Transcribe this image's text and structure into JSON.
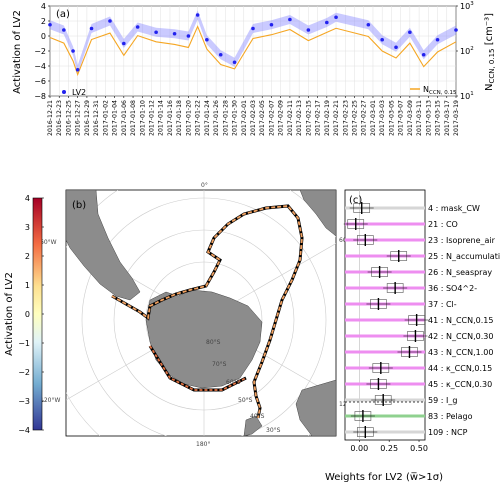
{
  "panel_a": {
    "tag": "(a)",
    "ylabel": "Activation of LV2",
    "ylabel_right_main": "N",
    "ylabel_right_sub": "CCN, 0.15",
    "ylabel_right_unit": " [cm⁻³]",
    "legend_lv2": "LV2",
    "legend_ncnn_main": "N",
    "legend_ncnn_sub": "CCN, 0.15",
    "yticks_left": [
      "4",
      "2",
      "0",
      "−2",
      "−4",
      "−6",
      "−8"
    ],
    "yticks_right_base": [
      "10",
      "10",
      "10"
    ],
    "yticks_right_exp": [
      "3",
      "2",
      "1"
    ],
    "dates": [
      "2016-12-21",
      "2016-12-23",
      "2016-12-25",
      "2016-12-27",
      "2016-12-29",
      "2016-12-31",
      "2017-01-02",
      "2017-01-04",
      "2017-01-06",
      "2017-01-08",
      "2017-01-10",
      "2017-01-12",
      "2017-01-14",
      "2017-01-16",
      "2017-01-18",
      "2017-01-20",
      "2017-01-22",
      "2017-01-24",
      "2017-01-26",
      "2017-01-28",
      "2017-01-30",
      "2017-02-01",
      "2017-02-03",
      "2017-02-05",
      "2017-02-07",
      "2017-02-09",
      "2017-02-11",
      "2017-02-13",
      "2017-02-15",
      "2017-02-17",
      "2017-02-19",
      "2017-02-21",
      "2017-02-23",
      "2017-02-25",
      "2017-02-27",
      "2017-03-01",
      "2017-03-03",
      "2017-03-05",
      "2017-03-07",
      "2017-03-09",
      "2017-03-11",
      "2017-03-13",
      "2017-03-15",
      "2017-03-17",
      "2017-03-19"
    ],
    "colors": {
      "lv2": "#2222ee",
      "band": "#8a8aff",
      "ncnn": "#f5a623"
    }
  },
  "panel_b": {
    "tag": "(b)",
    "colorbar_label": "Activation of LV2",
    "colorbar_ticks": [
      "4",
      "3",
      "2",
      "1",
      "0",
      "−1",
      "−2",
      "−3",
      "−4"
    ],
    "lon_labels": [
      "0°",
      "60°E",
      "120°E",
      "180°",
      "120°W",
      "60°W"
    ],
    "lat_labels": [
      "80°S",
      "70°S",
      "60°S",
      "50°S",
      "40°S",
      "30°S"
    ]
  },
  "panel_c": {
    "tag": "(c)",
    "xlabel": "Weights for LV2 (w̅>1σ)",
    "xticks": [
      "0.00",
      "0.25",
      "0.50"
    ],
    "colors": {
      "highlight": "#ee8ef0",
      "green": "#8fd18f",
      "gray": "#d6d6d6"
    }
  },
  "chart_data": [
    {
      "type": "line",
      "title": "(a)",
      "x_range": [
        "2016-12-21",
        "2017-03-19"
      ],
      "y_left_label": "Activation of LV2",
      "y_left_range": [
        -8,
        4
      ],
      "y_right_label": "N_CCN,0.15 [cm-3]",
      "y_right_scale": "log",
      "y_right_range": [
        10,
        1000
      ],
      "series": [
        {
          "name": "LV2",
          "x": [
            "2016-12-21",
            "2016-12-24",
            "2016-12-26",
            "2016-12-27",
            "2016-12-30",
            "2017-01-03",
            "2017-01-06",
            "2017-01-09",
            "2017-01-13",
            "2017-01-17",
            "2017-01-20",
            "2017-01-22",
            "2017-01-24",
            "2017-01-27",
            "2017-01-30",
            "2017-02-03",
            "2017-02-07",
            "2017-02-11",
            "2017-02-15",
            "2017-02-19",
            "2017-02-21",
            "2017-02-28",
            "2017-03-03",
            "2017-03-06",
            "2017-03-09",
            "2017-03-12",
            "2017-03-15",
            "2017-03-19"
          ],
          "y": [
            1.5,
            0.8,
            -2.0,
            -4.5,
            1.0,
            2.0,
            -1.0,
            1.2,
            0.5,
            0.3,
            0.0,
            2.8,
            -0.5,
            -2.5,
            -3.5,
            1.0,
            1.5,
            2.2,
            0.8,
            1.8,
            2.5,
            1.5,
            -0.5,
            -1.5,
            0.5,
            -2.5,
            -0.5,
            0.8
          ]
        },
        {
          "name": "N_CCN,0.15",
          "x": [
            "2016-12-21",
            "2016-12-24",
            "2016-12-26",
            "2016-12-27",
            "2016-12-30",
            "2017-01-03",
            "2017-01-06",
            "2017-01-09",
            "2017-01-13",
            "2017-01-17",
            "2017-01-20",
            "2017-01-22",
            "2017-01-24",
            "2017-01-27",
            "2017-01-30",
            "2017-02-03",
            "2017-02-07",
            "2017-02-11",
            "2017-02-15",
            "2017-02-19",
            "2017-02-21",
            "2017-02-28",
            "2017-03-03",
            "2017-03-06",
            "2017-03-09",
            "2017-03-12",
            "2017-03-15",
            "2017-03-19"
          ],
          "y": [
            200,
            150,
            60,
            30,
            180,
            250,
            80,
            220,
            160,
            140,
            120,
            350,
            110,
            50,
            40,
            190,
            230,
            300,
            170,
            260,
            320,
            210,
            100,
            70,
            150,
            45,
            95,
            160
          ]
        }
      ]
    },
    {
      "type": "bar",
      "title": "(c)",
      "xlabel": "Weights for LV2 (w̅>1σ)",
      "xlim": [
        -0.12,
        0.55
      ],
      "categories": [
        "4 : mask_CW",
        "21 : CO",
        "23 : Isoprene_air",
        "25 : N_accumulation",
        "26 : N_seaspray",
        "36 : SO4^2-",
        "37 : Cl-",
        "41 : N_CCN,0.15",
        "42 : N_CCN,0.30",
        "43 : N_CCN,1.00",
        "44 : κ_CCN,0.15",
        "45 : κ_CCN,0.30",
        "59 : I_g",
        "83 : Pelago",
        "109 : NCP"
      ],
      "series": [
        {
          "name": "median weight",
          "values": [
            0.02,
            -0.03,
            0.05,
            0.33,
            0.17,
            0.3,
            0.16,
            0.48,
            0.47,
            0.42,
            0.18,
            0.16,
            0.2,
            0.03,
            0.05
          ]
        }
      ],
      "highlighted": [
        false,
        true,
        true,
        true,
        true,
        true,
        true,
        true,
        true,
        true,
        true,
        true,
        false,
        false,
        false
      ]
    }
  ]
}
